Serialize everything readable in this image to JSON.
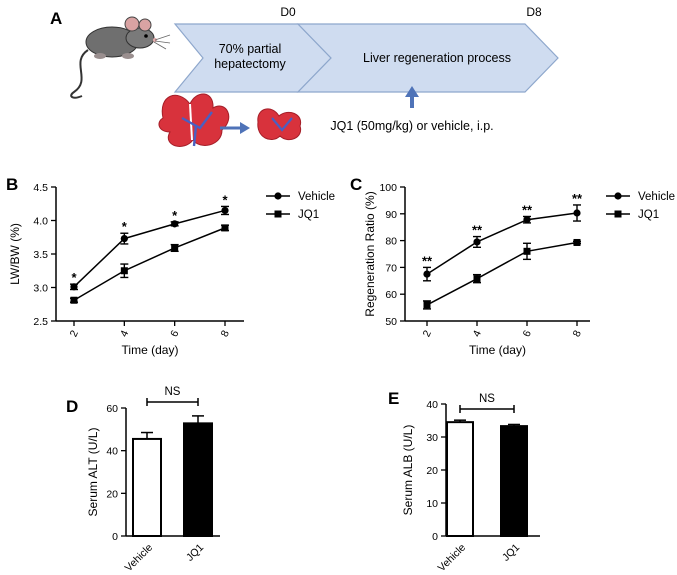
{
  "panel_a": {
    "letter": "A",
    "d0": "D0",
    "d8": "D8",
    "step1_line1": "70% partial",
    "step1_line2": "hepatectomy",
    "step2": "Liver regeneration process",
    "treatment": "JQ1 (50mg/kg) or vehicle, i.p.",
    "colors": {
      "arrow_fill": "#cfdcf0",
      "arrow_stroke": "#8ea7cc",
      "liver": "#d8323c",
      "vessel": "#4a5fc1",
      "up_arrow": "#4f73b8"
    }
  },
  "chart_data": [
    {
      "panel": "B",
      "type": "line",
      "xlabel": "Time (day)",
      "ylabel": "LW/BW (%)",
      "categories": [
        "2",
        "4",
        "6",
        "8"
      ],
      "ylim": [
        2.5,
        4.5
      ],
      "yticks": [
        "2.5",
        "3.0",
        "3.5",
        "4.0",
        "4.5"
      ],
      "legend_position": "top-right",
      "series": [
        {
          "name": "Vehicle",
          "marker": "circle",
          "values": [
            3.01,
            3.73,
            3.95,
            4.15
          ],
          "errors": [
            0.04,
            0.08,
            0.03,
            0.06
          ]
        },
        {
          "name": "JQ1",
          "marker": "square",
          "values": [
            2.81,
            3.25,
            3.59,
            3.89
          ],
          "errors": [
            0.03,
            0.1,
            0.05,
            0.04
          ]
        }
      ],
      "annotations": [
        "*",
        "*",
        "*",
        "*"
      ]
    },
    {
      "panel": "C",
      "type": "line",
      "xlabel": "Time (day)",
      "ylabel": "Regeneration Ratio (%)",
      "categories": [
        "2",
        "4",
        "6",
        "8"
      ],
      "ylim": [
        50,
        100
      ],
      "yticks": [
        "50",
        "60",
        "70",
        "80",
        "90",
        "100"
      ],
      "legend_position": "top-right",
      "series": [
        {
          "name": "Vehicle",
          "marker": "circle",
          "values": [
            67.5,
            79.5,
            87.8,
            90.3
          ],
          "errors": [
            2.5,
            2.0,
            1.2,
            3.0
          ]
        },
        {
          "name": "JQ1",
          "marker": "square",
          "values": [
            56.0,
            65.8,
            76.0,
            79.3
          ],
          "errors": [
            1.5,
            1.5,
            3.0,
            0.4
          ]
        }
      ],
      "annotations": [
        "**",
        "**",
        "**",
        "**"
      ]
    },
    {
      "panel": "D",
      "type": "bar",
      "ylabel": "Serum ALT (U/L)",
      "categories": [
        "Vehicle",
        "JQ1"
      ],
      "values": [
        45.5,
        52.8
      ],
      "errors": [
        3.0,
        3.5
      ],
      "ylim": [
        0,
        60
      ],
      "yticks": [
        "0",
        "20",
        "40",
        "60"
      ],
      "bar_colors": [
        "#ffffff",
        "#000000"
      ],
      "annotation": "NS"
    },
    {
      "panel": "E",
      "type": "bar",
      "ylabel": "Serum ALB (U/L)",
      "categories": [
        "Vehicle",
        "JQ1"
      ],
      "values": [
        34.5,
        33.3
      ],
      "errors": [
        0.6,
        0.5
      ],
      "ylim": [
        0,
        40
      ],
      "yticks": [
        "0",
        "10",
        "20",
        "30",
        "40"
      ],
      "bar_colors": [
        "#ffffff",
        "#000000"
      ],
      "annotation": "NS"
    }
  ]
}
